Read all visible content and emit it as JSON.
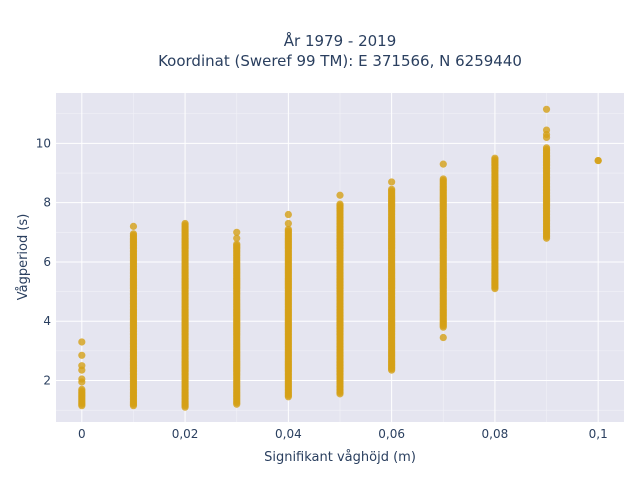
{
  "chart_data": {
    "type": "scatter",
    "title_line1": "År 1979 - 2019",
    "title_line2": "Koordinat (Sweref 99 TM): E 371566, N 6259440",
    "xlabel": "Signifikant våghöjd (m)",
    "ylabel": "Vågperiod (s)",
    "xlim": [
      -0.005,
      0.105
    ],
    "ylim": [
      0.6,
      11.7
    ],
    "x_ticks": [
      0,
      0.02,
      0.04,
      0.06,
      0.08,
      0.1
    ],
    "x_tick_labels": [
      "0",
      "0,02",
      "0,04",
      "0,06",
      "0,08",
      "0,1"
    ],
    "y_ticks": [
      2,
      4,
      6,
      8,
      10
    ],
    "y_tick_labels": [
      "2",
      "4",
      "6",
      "8",
      "10"
    ],
    "grid": true,
    "marker_color": "#d4a017",
    "plot_bg": "#e5e5f0",
    "columns": [
      {
        "x": 0,
        "y_min": 1.15,
        "y_max": 1.7,
        "extra_points": [
          1.95,
          2.05,
          2.35,
          2.5,
          2.85,
          3.3
        ]
      },
      {
        "x": 0.01,
        "y_min": 1.15,
        "y_max": 6.95,
        "extra_points": [
          7.2
        ]
      },
      {
        "x": 0.02,
        "y_min": 1.1,
        "y_max": 7.3,
        "extra_points": []
      },
      {
        "x": 0.03,
        "y_min": 1.2,
        "y_max": 6.6,
        "extra_points": [
          6.8,
          7.0
        ]
      },
      {
        "x": 0.04,
        "y_min": 1.45,
        "y_max": 7.1,
        "extra_points": [
          7.3,
          7.6
        ]
      },
      {
        "x": 0.05,
        "y_min": 1.55,
        "y_max": 7.95,
        "extra_points": [
          8.25
        ]
      },
      {
        "x": 0.06,
        "y_min": 2.35,
        "y_max": 8.45,
        "extra_points": [
          8.7
        ]
      },
      {
        "x": 0.07,
        "y_min": 3.8,
        "y_max": 8.8,
        "extra_points": [
          3.45,
          9.3
        ]
      },
      {
        "x": 0.08,
        "y_min": 5.1,
        "y_max": 9.5,
        "extra_points": []
      },
      {
        "x": 0.09,
        "y_min": 6.8,
        "y_max": 9.85,
        "extra_points": [
          10.2,
          10.3,
          10.45,
          11.15
        ]
      },
      {
        "x": 0.1,
        "y_min": 9.42,
        "y_max": 9.42,
        "extra_points": []
      }
    ]
  }
}
